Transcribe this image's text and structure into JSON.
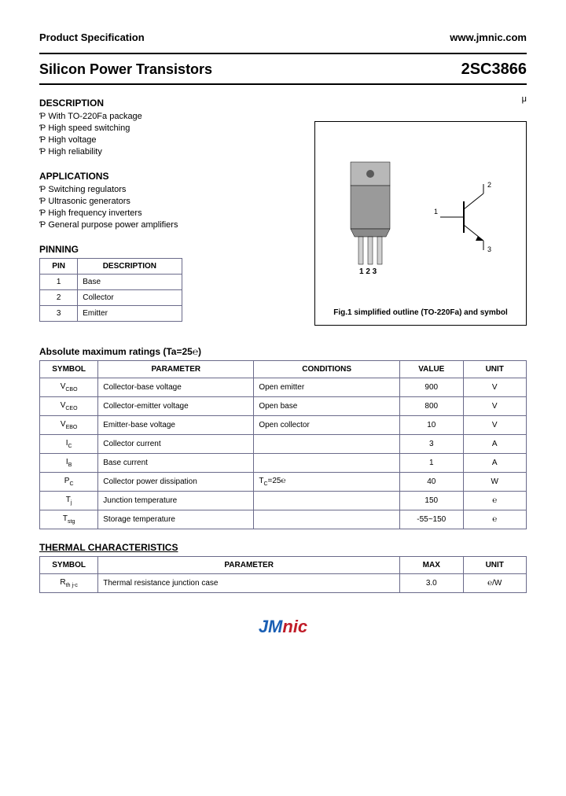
{
  "header": {
    "left": "Product Specification",
    "right": "www.jmnic.com"
  },
  "title": {
    "left": "Silicon Power Transistors",
    "right": "2SC3866"
  },
  "stray": "μ",
  "description": {
    "heading": "DESCRIPTION",
    "items": [
      "With TO-220Fa package",
      "High speed switching",
      "High voltage",
      "High reliability"
    ]
  },
  "applications": {
    "heading": "APPLICATIONS",
    "items": [
      "Switching regulators",
      "Ultrasonic generators",
      "High frequency inverters",
      "General purpose power amplifiers"
    ]
  },
  "pinning": {
    "heading": "PINNING",
    "columns": [
      "PIN",
      "DESCRIPTION"
    ],
    "rows": [
      [
        "1",
        "Base"
      ],
      [
        "2",
        "Collector"
      ],
      [
        "3",
        "Emitter"
      ]
    ]
  },
  "figure": {
    "pins_label": "1 2 3",
    "symbol_labels": {
      "pin1": "1",
      "pin2": "2",
      "pin3": "3"
    },
    "caption": "Fig.1 simplified outline (TO-220Fa) and symbol"
  },
  "ratings": {
    "heading": "Absolute maximum ratings (Ta=25℮)",
    "columns": [
      "SYMBOL",
      "PARAMETER",
      "CONDITIONS",
      "VALUE",
      "UNIT"
    ],
    "rows": [
      {
        "symbol": "V",
        "sub": "CBO",
        "param": "Collector-base voltage",
        "cond": "Open emitter",
        "value": "900",
        "unit": "V"
      },
      {
        "symbol": "V",
        "sub": "CEO",
        "param": "Collector-emitter voltage",
        "cond": "Open base",
        "value": "800",
        "unit": "V"
      },
      {
        "symbol": "V",
        "sub": "EBO",
        "param": "Emitter-base voltage",
        "cond": "Open collector",
        "value": "10",
        "unit": "V"
      },
      {
        "symbol": "I",
        "sub": "C",
        "param": "Collector current",
        "cond": "",
        "value": "3",
        "unit": "A"
      },
      {
        "symbol": "I",
        "sub": "B",
        "param": "Base current",
        "cond": "",
        "value": "1",
        "unit": "A"
      },
      {
        "symbol": "P",
        "sub": "C",
        "param": "Collector power dissipation",
        "cond": "T",
        "cond_sub": "C",
        "cond_rest": "=25℮",
        "value": "40",
        "unit": "W"
      },
      {
        "symbol": "T",
        "sub": "j",
        "param": "Junction temperature",
        "cond": "",
        "value": "150",
        "unit": "℮"
      },
      {
        "symbol": "T",
        "sub": "stg",
        "param": "Storage temperature",
        "cond": "",
        "value": "-55~150",
        "unit": "℮"
      }
    ]
  },
  "thermal": {
    "heading": "THERMAL CHARACTERISTICS",
    "columns": [
      "SYMBOL",
      "PARAMETER",
      "MAX",
      "UNIT"
    ],
    "rows": [
      {
        "symbol": "R",
        "sub": "th j-c",
        "param": "Thermal resistance junction case",
        "max": "3.0",
        "unit": "℮/W"
      }
    ]
  },
  "footer": {
    "brand1": "JM",
    "brand2": "nic"
  },
  "colors": {
    "border": "#6a6a8a",
    "brand_blue": "#1a5fb4",
    "brand_red": "#c01c28",
    "package_fill": "#9a9a9a",
    "package_dark": "#5a5a5a"
  }
}
